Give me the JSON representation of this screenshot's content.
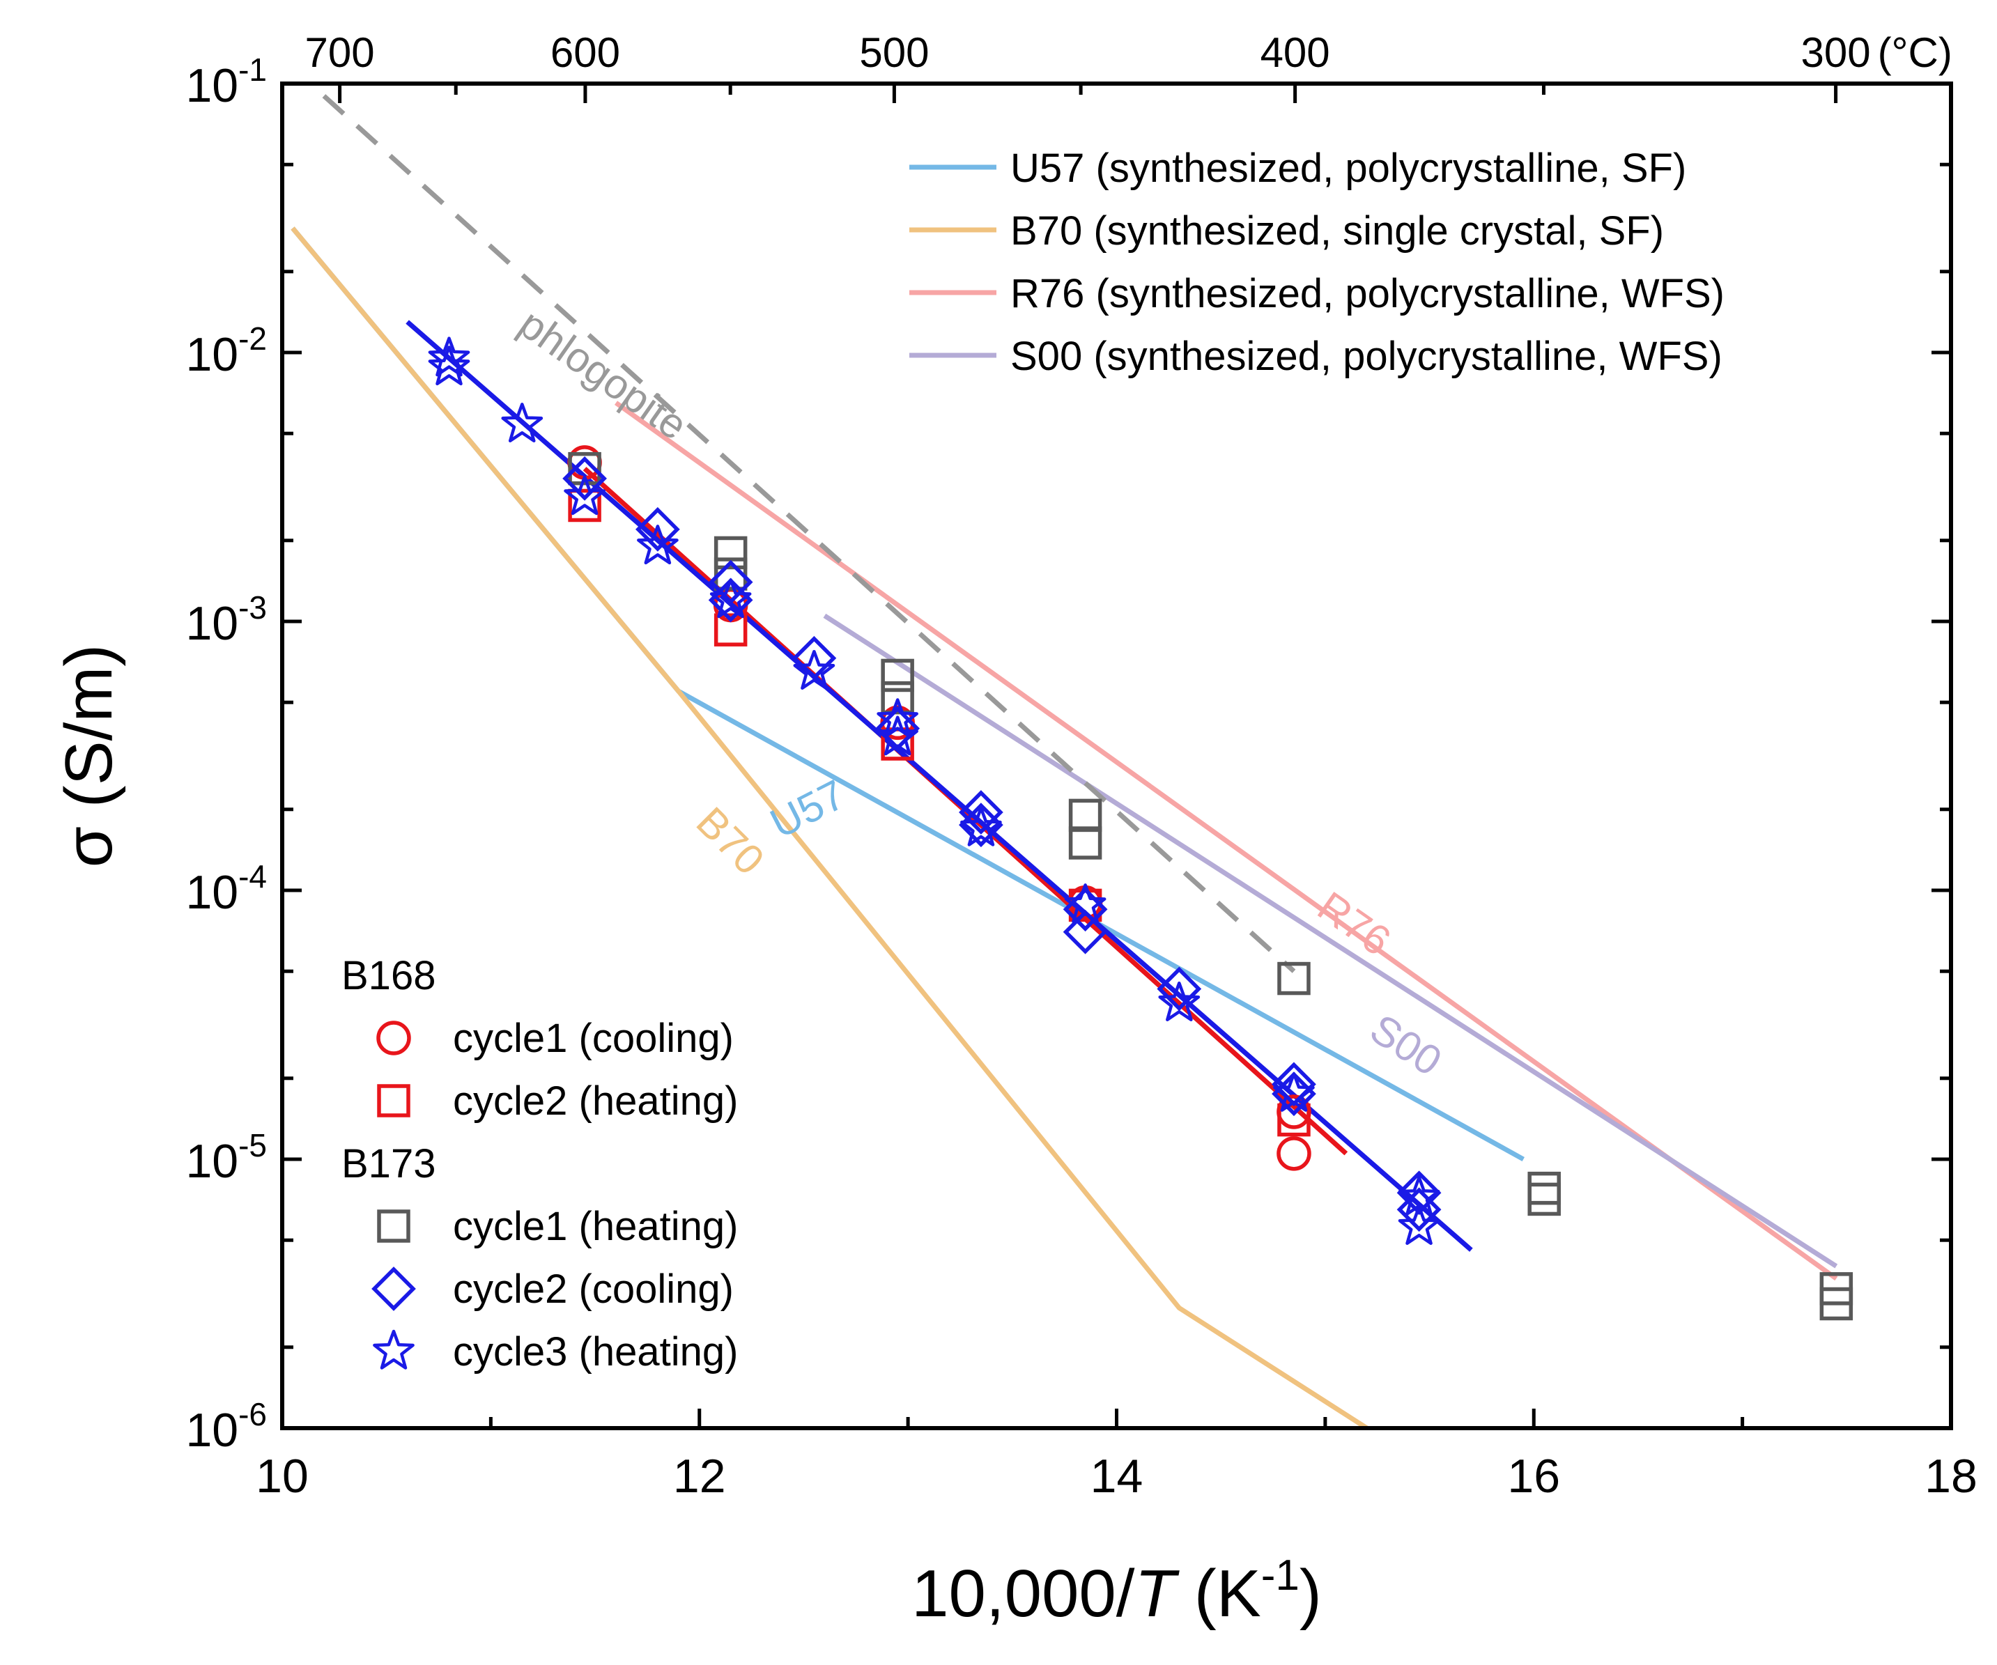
{
  "chart_data": {
    "type": "scatter",
    "title": "",
    "xlabel": "10,000/T (K⁻¹)",
    "ylabel": "σ (S/m)",
    "xlim": [
      10,
      18
    ],
    "ylim": [
      1e-06,
      0.1
    ],
    "yscale": "log",
    "x_ticks": [
      "10",
      "12",
      "14",
      "16",
      "18"
    ],
    "y_ticks": [
      {
        "base": "10",
        "exp": "-6",
        "value": 1e-06
      },
      {
        "base": "10",
        "exp": "-5",
        "value": 1e-05
      },
      {
        "base": "10",
        "exp": "-4",
        "value": 0.0001
      },
      {
        "base": "10",
        "exp": "-3",
        "value": 0.001
      },
      {
        "base": "10",
        "exp": "-2",
        "value": 0.01
      },
      {
        "base": "10",
        "exp": "-1",
        "value": 0.1
      }
    ],
    "top_axis": {
      "unit": "(°C)",
      "ticks": [
        {
          "label": "700",
          "celsius": 700
        },
        {
          "label": "600",
          "celsius": 600
        },
        {
          "label": "500",
          "celsius": 500
        },
        {
          "label": "400",
          "celsius": 400
        },
        {
          "label": "300",
          "celsius": 300
        }
      ]
    },
    "grid": false,
    "legend_position": "top-right",
    "reference_lines": [
      {
        "name": "U57 (synthesized, polycrystalline, SF)",
        "label": "U57",
        "color": "#74b8e6",
        "x": [
          10.05,
          11.9,
          15.95
        ],
        "y": [
          0.029,
          0.00055,
          1e-05
        ]
      },
      {
        "name": "B70 (synthesized, single crystal, SF)",
        "label": "B70",
        "color": "#f0c27f",
        "x": [
          10.05,
          11.9,
          14.3,
          15.2
        ],
        "y": [
          0.029,
          0.00055,
          2.8e-06,
          1e-06
        ]
      },
      {
        "name": "R76 (synthesized, polycrystalline, WFS)",
        "label": "R76",
        "color": "#f7a5a5",
        "x": [
          11.6,
          17.45
        ],
        "y": [
          0.0065,
          3.6e-06
        ]
      },
      {
        "name": "S00 (synthesized, polycrystalline, WFS)",
        "label": "S00",
        "color": "#b4abd6",
        "x": [
          12.6,
          17.45
        ],
        "y": [
          0.00105,
          4e-06
        ]
      }
    ],
    "phlogopite_line": {
      "label": "phlogopite",
      "color": "#999999",
      "x": [
        10.2,
        14.85
      ],
      "y": [
        0.09,
        5e-05
      ]
    },
    "fit_lines": [
      {
        "group": "B168",
        "color": "#e8151b",
        "x": [
          11.45,
          15.1
        ],
        "y": [
          0.0037,
          1.05e-05
        ]
      },
      {
        "group": "B173",
        "color": "#1a1ae6",
        "x": [
          10.6,
          15.7
        ],
        "y": [
          0.013,
          4.6e-06
        ]
      }
    ],
    "series_groups": [
      {
        "title": "B168",
        "series": [
          {
            "name": "cycle1 (cooling)",
            "marker": "circle",
            "color": "#e8151b",
            "x": [
              11.45,
              12.15,
              12.95,
              13.85,
              14.85,
              14.85
            ],
            "y": [
              0.0039,
              0.00115,
              0.00042,
              9e-05,
              1.5e-05,
              1.05e-05
            ]
          },
          {
            "name": "cycle2 (heating)",
            "marker": "square",
            "color": "#e8151b",
            "x": [
              11.45,
              12.15,
              12.95,
              13.85,
              14.85
            ],
            "y": [
              0.0027,
              0.00093,
              0.00035,
              8.8e-05,
              1.4e-05
            ]
          }
        ]
      },
      {
        "title": "B173",
        "series": [
          {
            "name": "cycle1 (heating)",
            "marker": "square",
            "color": "#595959",
            "x": [
              11.45,
              12.15,
              12.15,
              12.95,
              12.95,
              13.85,
              13.85,
              14.85,
              16.05,
              16.05,
              17.45,
              17.45
            ],
            "y": [
              0.0037,
              0.0018,
              0.0015,
              0.00063,
              0.00052,
              0.00019,
              0.00015,
              4.7e-05,
              7.8e-06,
              7.1e-06,
              3.3e-06,
              2.9e-06
            ]
          },
          {
            "name": "cycle2 (cooling)",
            "marker": "diamond",
            "color": "#1a1ae6",
            "x": [
              11.45,
              11.8,
              12.15,
              12.15,
              12.55,
              12.95,
              13.35,
              13.35,
              13.85,
              13.85,
              14.3,
              14.85,
              14.85,
              15.45,
              15.45
            ],
            "y": [
              0.0034,
              0.0022,
              0.0014,
              0.0012,
              0.00073,
              0.0004,
              0.000195,
              0.000175,
              8.5e-05,
              7e-05,
              4.3e-05,
              1.9e-05,
              1.75e-05,
              7.5e-06,
              6.5e-06
            ]
          },
          {
            "name": "cycle3 (heating)",
            "marker": "star",
            "color": "#1a1ae6",
            "x": [
              10.8,
              10.8,
              11.15,
              11.45,
              11.8,
              12.15,
              12.55,
              12.95,
              12.95,
              13.35,
              13.85,
              14.3,
              14.85,
              15.45,
              15.45
            ],
            "y": [
              0.0095,
              0.0088,
              0.0054,
              0.0029,
              0.0019,
              0.0012,
              0.00065,
              0.00043,
              0.00037,
              0.00017,
              8.8e-05,
              3.8e-05,
              1.75e-05,
              7.2e-06,
              5.6e-06
            ]
          }
        ]
      }
    ]
  }
}
